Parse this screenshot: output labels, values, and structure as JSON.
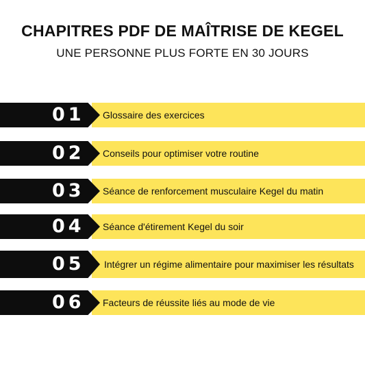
{
  "header": {
    "title": "CHAPITRES PDF DE MAÎTRISE DE KEGEL",
    "subtitle": "UNE PERSONNE PLUS FORTE EN 30 JOURS"
  },
  "colors": {
    "accent_yellow": "#fde45a",
    "number_block": "#0d0d0d",
    "text": "#111111"
  },
  "chapters": [
    {
      "number": "01",
      "label": "Glossaire des exercices"
    },
    {
      "number": "02",
      "label": "Conseils pour optimiser votre routine"
    },
    {
      "number": "03",
      "label": "Séance de renforcement musculaire Kegel du matin"
    },
    {
      "number": "04",
      "label": "Séance d'étirement Kegel du soir"
    },
    {
      "number": "05",
      "label": "Intégrer un régime alimentaire pour maximiser les résultats"
    },
    {
      "number": "06",
      "label": "Facteurs de réussite liés au mode de vie"
    }
  ]
}
